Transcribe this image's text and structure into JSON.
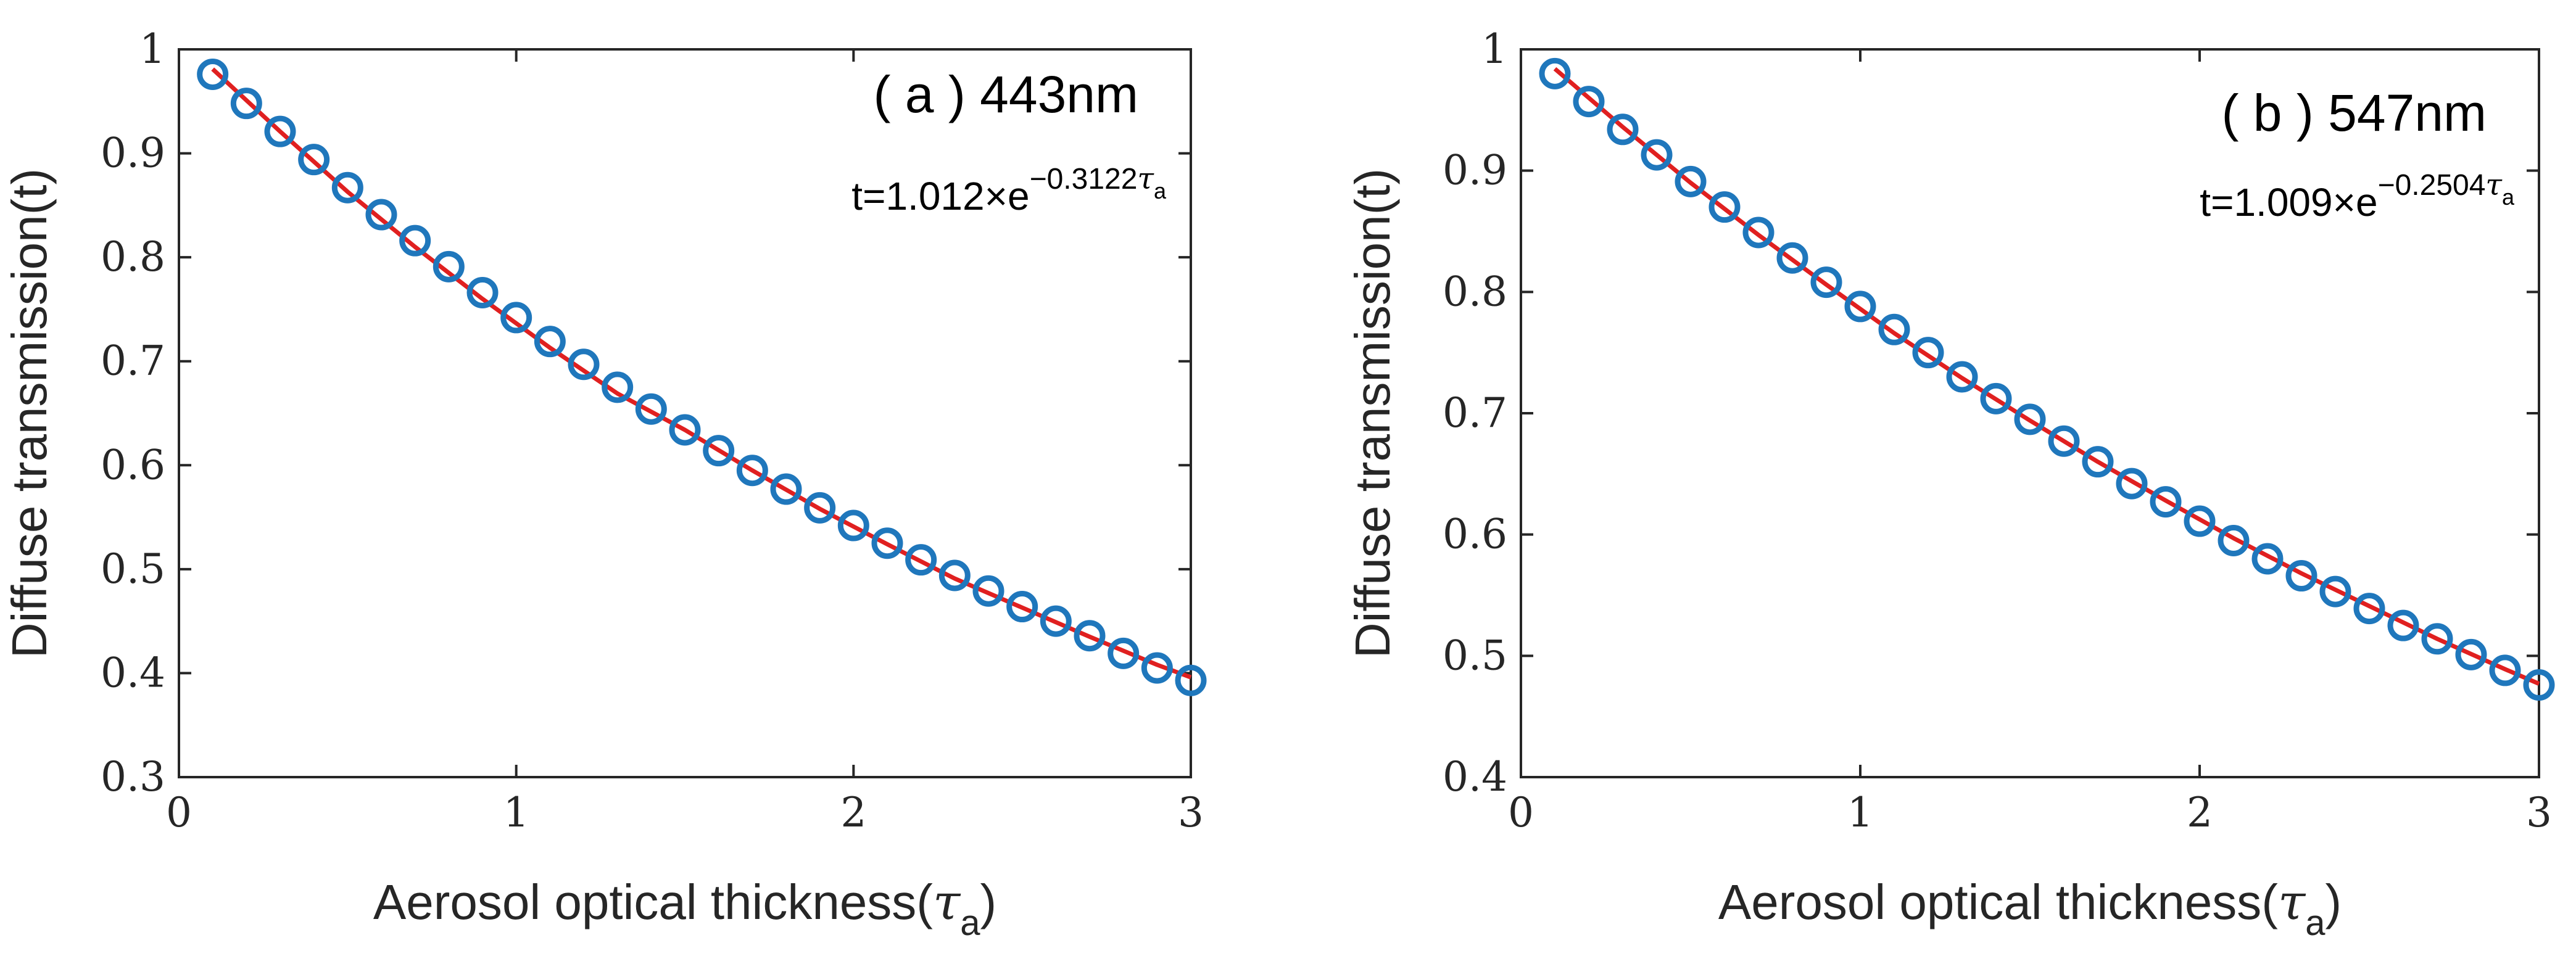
{
  "chart_data": [
    {
      "type": "scatter",
      "panel": "(a)",
      "title": "( a ) 443nm",
      "equation": {
        "prefix": "t=1.012×e",
        "exponent": "−0.3122",
        "tau": "τ",
        "sub": "a"
      },
      "xlabel": {
        "main": "Aerosol optical thickness(",
        "tau": "τ",
        "sub": "a",
        "close": ")"
      },
      "ylabel": "Diffuse transmission(t)",
      "xlim": [
        0,
        3
      ],
      "ylim": [
        0.3,
        1.0
      ],
      "xticks": [
        0,
        1,
        2,
        3
      ],
      "xtick_labels": [
        "0",
        "1",
        "2",
        "3"
      ],
      "yticks": [
        0.3,
        0.4,
        0.5,
        0.6,
        0.7,
        0.8,
        0.9,
        1.0
      ],
      "ytick_labels": [
        "0.3",
        "0.4",
        "0.5",
        "0.6",
        "0.7",
        "0.8",
        "0.9",
        "1"
      ],
      "grid": false,
      "colors": {
        "markers": "#1f77bc",
        "fit": "#e02020"
      },
      "series": [
        {
          "kind": "markers",
          "x": [
            0.1,
            0.2,
            0.3,
            0.4,
            0.5,
            0.6,
            0.7,
            0.8,
            0.9,
            1.0,
            1.1,
            1.2,
            1.3,
            1.4,
            1.5,
            1.6,
            1.7,
            1.8,
            1.9,
            2.0,
            2.1,
            2.2,
            2.3,
            2.4,
            2.5,
            2.6,
            2.7,
            2.8,
            2.9,
            3.0
          ],
          "y": [
            0.976,
            0.948,
            0.921,
            0.894,
            0.867,
            0.841,
            0.816,
            0.791,
            0.766,
            0.742,
            0.719,
            0.697,
            0.675,
            0.654,
            0.634,
            0.614,
            0.595,
            0.577,
            0.559,
            0.542,
            0.525,
            0.509,
            0.494,
            0.479,
            0.464,
            0.45,
            0.436,
            0.419,
            0.405,
            0.393
          ]
        },
        {
          "kind": "fit",
          "x": [
            0.1,
            0.3,
            0.5,
            0.7,
            0.9,
            1.1,
            1.3,
            1.5,
            1.7,
            1.9,
            2.1,
            2.3,
            2.5,
            2.7,
            2.9,
            3.0
          ],
          "y": [
            0.981,
            0.921,
            0.863,
            0.81,
            0.76,
            0.713,
            0.669,
            0.634,
            0.595,
            0.558,
            0.524,
            0.491,
            0.463,
            0.435,
            0.408,
            0.396
          ]
        }
      ]
    },
    {
      "type": "scatter",
      "panel": "(b)",
      "title": "( b ) 547nm",
      "equation": {
        "prefix": "t=1.009×e",
        "exponent": "−0.2504",
        "tau": "τ",
        "sub": "a"
      },
      "xlabel": {
        "main": "Aerosol optical thickness(",
        "tau": "τ",
        "sub": "a",
        "close": ")"
      },
      "ylabel": "Diffuse transmission(t)",
      "xlim": [
        0,
        3
      ],
      "ylim": [
        0.4,
        1.0
      ],
      "xticks": [
        0,
        1,
        2,
        3
      ],
      "xtick_labels": [
        "0",
        "1",
        "2",
        "3"
      ],
      "yticks": [
        0.4,
        0.5,
        0.6,
        0.7,
        0.8,
        0.9,
        1.0
      ],
      "ytick_labels": [
        "0.4",
        "0.5",
        "0.6",
        "0.7",
        "0.8",
        "0.9",
        "1"
      ],
      "grid": false,
      "colors": {
        "markers": "#1f77bc",
        "fit": "#e02020"
      },
      "series": [
        {
          "kind": "markers",
          "x": [
            0.1,
            0.2,
            0.3,
            0.4,
            0.5,
            0.6,
            0.7,
            0.8,
            0.9,
            1.0,
            1.1,
            1.2,
            1.3,
            1.4,
            1.5,
            1.6,
            1.7,
            1.8,
            1.9,
            2.0,
            2.1,
            2.2,
            2.3,
            2.4,
            2.5,
            2.6,
            2.7,
            2.8,
            2.9,
            3.0
          ],
          "y": [
            0.98,
            0.957,
            0.934,
            0.913,
            0.891,
            0.87,
            0.849,
            0.828,
            0.808,
            0.788,
            0.769,
            0.75,
            0.73,
            0.712,
            0.695,
            0.677,
            0.66,
            0.642,
            0.627,
            0.611,
            0.595,
            0.58,
            0.566,
            0.553,
            0.539,
            0.525,
            0.514,
            0.501,
            0.488,
            0.476
          ]
        },
        {
          "kind": "fit",
          "x": [
            0.1,
            0.3,
            0.5,
            0.7,
            0.9,
            1.1,
            1.3,
            1.5,
            1.7,
            1.9,
            2.1,
            2.3,
            2.5,
            2.7,
            2.9,
            3.0
          ],
          "y": [
            0.984,
            0.936,
            0.89,
            0.847,
            0.806,
            0.766,
            0.729,
            0.694,
            0.66,
            0.628,
            0.597,
            0.568,
            0.541,
            0.514,
            0.489,
            0.477
          ]
        }
      ]
    }
  ]
}
